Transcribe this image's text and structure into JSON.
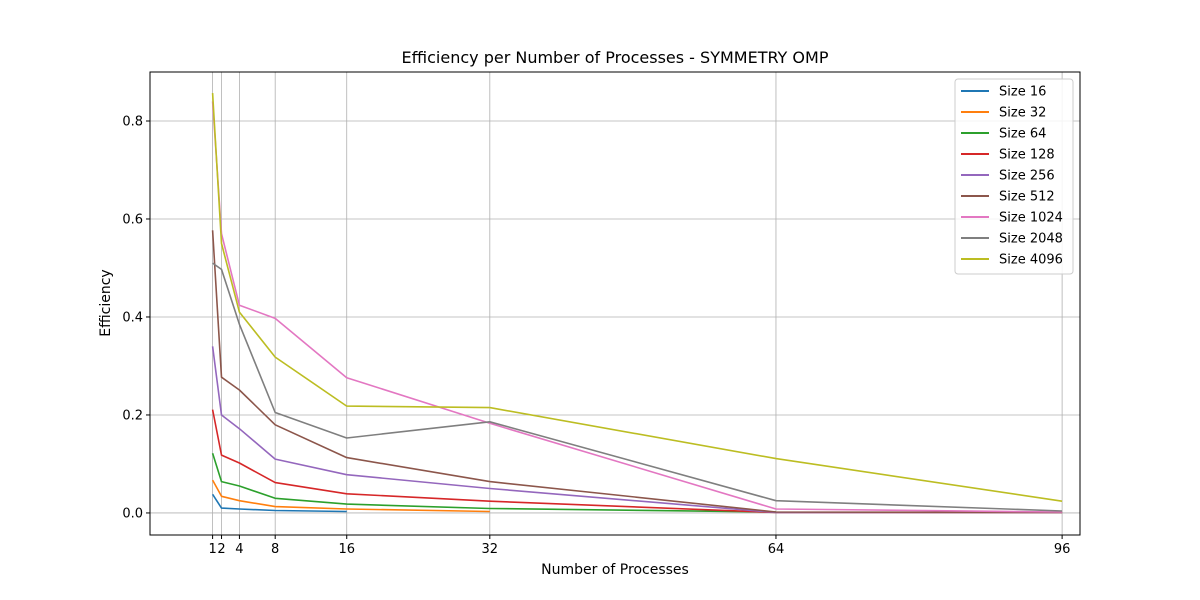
{
  "chart_data": {
    "type": "line",
    "title": "Efficiency per Number of Processes - SYMMETRY OMP",
    "xlabel": "Number of Processes",
    "ylabel": "Efficiency",
    "xlim": [
      -6,
      98
    ],
    "ylim": [
      -0.045,
      0.9
    ],
    "xticks": [
      1,
      2,
      4,
      8,
      16,
      32,
      64,
      96
    ],
    "yticks": [
      0.0,
      0.2,
      0.4,
      0.6,
      0.8
    ],
    "ytick_labels": [
      "0.0",
      "0.2",
      "0.4",
      "0.6",
      "0.8"
    ],
    "grid": true,
    "legend_position": "top-right",
    "series": [
      {
        "name": "Size 16",
        "color": "#1f77b4",
        "x": [
          1,
          2,
          4,
          8,
          16
        ],
        "y": [
          0.038,
          0.01,
          0.008,
          0.005,
          0.003
        ]
      },
      {
        "name": "Size 32",
        "color": "#ff7f0e",
        "x": [
          1,
          2,
          4,
          8,
          16,
          32
        ],
        "y": [
          0.067,
          0.034,
          0.025,
          0.013,
          0.008,
          0.003
        ]
      },
      {
        "name": "Size 64",
        "color": "#2ca02c",
        "x": [
          1,
          2,
          4,
          8,
          16,
          32,
          64
        ],
        "y": [
          0.122,
          0.064,
          0.055,
          0.03,
          0.018,
          0.009,
          0.002
        ]
      },
      {
        "name": "Size 128",
        "color": "#d62728",
        "x": [
          1,
          2,
          4,
          8,
          16,
          32,
          64,
          96
        ],
        "y": [
          0.211,
          0.118,
          0.102,
          0.062,
          0.039,
          0.024,
          0.001,
          0.001
        ]
      },
      {
        "name": "Size 256",
        "color": "#9467bd",
        "x": [
          1,
          2,
          4,
          8,
          16,
          32,
          64,
          96
        ],
        "y": [
          0.34,
          0.2,
          0.172,
          0.11,
          0.078,
          0.05,
          0.001,
          0.001
        ]
      },
      {
        "name": "Size 512",
        "color": "#8c564b",
        "x": [
          1,
          2,
          4,
          8,
          16,
          32,
          64,
          96
        ],
        "y": [
          0.577,
          0.277,
          0.251,
          0.18,
          0.113,
          0.064,
          0.002,
          0.001
        ]
      },
      {
        "name": "Size 1024",
        "color": "#e377c2",
        "x": [
          1,
          2,
          4,
          8,
          16,
          32,
          64,
          96
        ],
        "y": [
          0.84,
          0.57,
          0.424,
          0.397,
          0.276,
          0.183,
          0.008,
          0.002
        ]
      },
      {
        "name": "Size 2048",
        "color": "#7f7f7f",
        "x": [
          1,
          2,
          4,
          8,
          16,
          32,
          64,
          96
        ],
        "y": [
          0.51,
          0.497,
          0.385,
          0.205,
          0.153,
          0.186,
          0.025,
          0.004
        ]
      },
      {
        "name": "Size 4096",
        "color": "#bcbd22",
        "x": [
          1,
          2,
          4,
          8,
          16,
          32,
          64,
          96
        ],
        "y": [
          0.857,
          0.55,
          0.41,
          0.318,
          0.218,
          0.215,
          0.111,
          0.024
        ]
      }
    ]
  }
}
